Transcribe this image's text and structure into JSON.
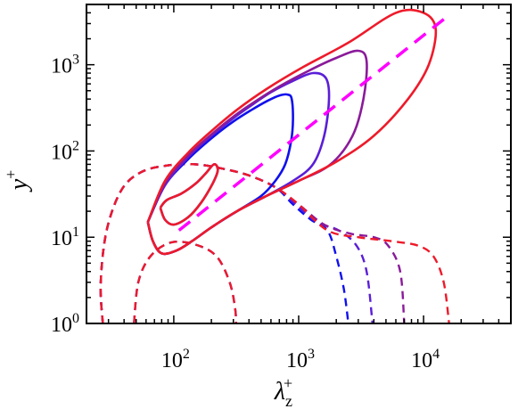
{
  "chart_data": {
    "type": "contour",
    "xlabel": "λ",
    "xlabel_sub": "z",
    "xlabel_sup": "+",
    "ylabel": "y",
    "ylabel_sup": "+",
    "x_scale": "log",
    "y_scale": "log",
    "xlim": [
      20,
      50000
    ],
    "ylim": [
      1,
      5000
    ],
    "x_ticks": [
      {
        "value": 100,
        "base": "10",
        "exp": "2"
      },
      {
        "value": 1000,
        "base": "10",
        "exp": "3"
      },
      {
        "value": 10000,
        "base": "10",
        "exp": "4"
      }
    ],
    "y_ticks": [
      {
        "value": 1,
        "base": "10",
        "exp": "0"
      },
      {
        "value": 10,
        "base": "10",
        "exp": "1"
      },
      {
        "value": 100,
        "base": "10",
        "exp": "2"
      },
      {
        "value": 1000,
        "base": "10",
        "exp": "3"
      }
    ],
    "reference_line": {
      "color": "#ff00ff",
      "style": "dashed",
      "points": [
        [
          110,
          12
        ],
        [
          15000,
          3500
        ]
      ]
    },
    "series": [
      {
        "color": "#1010ee",
        "solid_contours": [
          [
            [
              62,
              15
            ],
            [
              68,
              9
            ],
            [
              80,
              6.5
            ],
            [
              105,
              7
            ],
            [
              140,
              9
            ],
            [
              200,
              13
            ],
            [
              320,
              20
            ],
            [
              500,
              30
            ],
            [
              650,
              45
            ],
            [
              780,
              70
            ],
            [
              870,
              130
            ],
            [
              900,
              230
            ],
            [
              880,
              400
            ],
            [
              820,
              450
            ],
            [
              700,
              440
            ],
            [
              560,
              380
            ],
            [
              420,
              300
            ],
            [
              300,
              220
            ],
            [
              200,
              140
            ],
            [
              130,
              80
            ],
            [
              85,
              40
            ],
            [
              62,
              15
            ]
          ],
          [
            [
              78,
              22
            ],
            [
              85,
              16
            ],
            [
              100,
              14
            ],
            [
              130,
              17
            ],
            [
              165,
              25
            ],
            [
              205,
              42
            ],
            [
              225,
              60
            ],
            [
              210,
              70
            ],
            [
              180,
              55
            ],
            [
              150,
              42
            ],
            [
              115,
              32
            ],
            [
              88,
              27
            ],
            [
              78,
              22
            ]
          ]
        ],
        "dashed_contours": [
          [
            [
              27,
              1
            ],
            [
              26,
              3
            ],
            [
              29,
              12
            ],
            [
              38,
              35
            ],
            [
              55,
              57
            ],
            [
              90,
              68
            ],
            [
              150,
              70
            ],
            [
              250,
              62
            ],
            [
              400,
              52
            ],
            [
              650,
              38
            ],
            [
              900,
              24
            ],
            [
              1250,
              16
            ],
            [
              1700,
              12
            ],
            [
              2000,
              6
            ],
            [
              2300,
              2.5
            ],
            [
              2500,
              1
            ]
          ],
          [
            [
              48,
              1
            ],
            [
              52,
              3
            ],
            [
              65,
              6
            ],
            [
              95,
              8.7
            ],
            [
              150,
              8.2
            ],
            [
              220,
              6
            ],
            [
              280,
              3
            ],
            [
              310,
              1.5
            ],
            [
              315,
              1
            ]
          ]
        ]
      },
      {
        "color": "#5a1ed8",
        "solid_contours": [
          [
            [
              62,
              15
            ],
            [
              68,
              9
            ],
            [
              80,
              6.5
            ],
            [
              105,
              7
            ],
            [
              140,
              9
            ],
            [
              200,
              13
            ],
            [
              320,
              20
            ],
            [
              550,
              30
            ],
            [
              900,
              45
            ],
            [
              1300,
              70
            ],
            [
              1600,
              150
            ],
            [
              1750,
              400
            ],
            [
              1650,
              700
            ],
            [
              1300,
              800
            ],
            [
              900,
              650
            ],
            [
              600,
              480
            ],
            [
              420,
              340
            ],
            [
              300,
              240
            ],
            [
              200,
              150
            ],
            [
              130,
              85
            ],
            [
              85,
              40
            ],
            [
              62,
              15
            ]
          ]
        ],
        "dashed_contours": [
          [
            [
              27,
              1
            ],
            [
              26,
              3
            ],
            [
              29,
              12
            ],
            [
              38,
              35
            ],
            [
              55,
              57
            ],
            [
              90,
              68
            ],
            [
              150,
              70
            ],
            [
              250,
              62
            ],
            [
              400,
              52
            ],
            [
              650,
              38
            ],
            [
              950,
              24
            ],
            [
              1400,
              15
            ],
            [
              2100,
              12
            ],
            [
              2900,
              8
            ],
            [
              3500,
              4
            ],
            [
              3900,
              1
            ]
          ]
        ]
      },
      {
        "color": "#8a1a9a",
        "solid_contours": [
          [
            [
              62,
              15
            ],
            [
              68,
              9
            ],
            [
              80,
              6.5
            ],
            [
              105,
              7
            ],
            [
              140,
              9
            ],
            [
              200,
              13
            ],
            [
              320,
              20
            ],
            [
              550,
              30
            ],
            [
              1000,
              45
            ],
            [
              1800,
              70
            ],
            [
              2700,
              150
            ],
            [
              3300,
              400
            ],
            [
              3500,
              1100
            ],
            [
              3000,
              1450
            ],
            [
              2000,
              1200
            ],
            [
              1200,
              850
            ],
            [
              700,
              560
            ],
            [
              430,
              360
            ],
            [
              300,
              250
            ],
            [
              200,
              155
            ],
            [
              130,
              88
            ],
            [
              85,
              42
            ],
            [
              62,
              15
            ]
          ]
        ],
        "dashed_contours": [
          [
            [
              27,
              1
            ],
            [
              26,
              3
            ],
            [
              29,
              12
            ],
            [
              38,
              35
            ],
            [
              55,
              57
            ],
            [
              90,
              68
            ],
            [
              150,
              70
            ],
            [
              250,
              62
            ],
            [
              400,
              52
            ],
            [
              650,
              38
            ],
            [
              1000,
              24
            ],
            [
              1600,
              14
            ],
            [
              2600,
              11
            ],
            [
              4000,
              10
            ],
            [
              5200,
              8
            ],
            [
              6500,
              4
            ],
            [
              7000,
              1
            ]
          ]
        ]
      },
      {
        "color": "#ee1a2a",
        "solid_contours": [
          [
            [
              62,
              15
            ],
            [
              68,
              9
            ],
            [
              80,
              6.5
            ],
            [
              105,
              7
            ],
            [
              140,
              9
            ],
            [
              200,
              13
            ],
            [
              320,
              20
            ],
            [
              550,
              30
            ],
            [
              1000,
              45
            ],
            [
              2000,
              75
            ],
            [
              4000,
              150
            ],
            [
              7500,
              400
            ],
            [
              11000,
              1000
            ],
            [
              12500,
              2600
            ],
            [
              10000,
              4000
            ],
            [
              6000,
              4000
            ],
            [
              2500,
              1800
            ],
            [
              1100,
              950
            ],
            [
              550,
              520
            ],
            [
              320,
              300
            ],
            [
              200,
              170
            ],
            [
              130,
              95
            ],
            [
              85,
              45
            ],
            [
              62,
              15
            ]
          ],
          [
            [
              78,
              22
            ],
            [
              85,
              16
            ],
            [
              100,
              14
            ],
            [
              130,
              17
            ],
            [
              165,
              25
            ],
            [
              205,
              42
            ],
            [
              225,
              60
            ],
            [
              210,
              70
            ],
            [
              180,
              55
            ],
            [
              150,
              42
            ],
            [
              115,
              32
            ],
            [
              88,
              27
            ],
            [
              78,
              22
            ]
          ]
        ],
        "dashed_contours": [
          [
            [
              27,
              1
            ],
            [
              26,
              3
            ],
            [
              29,
              12
            ],
            [
              38,
              35
            ],
            [
              55,
              57
            ],
            [
              90,
              68
            ],
            [
              150,
              70
            ],
            [
              250,
              62
            ],
            [
              400,
              52
            ],
            [
              650,
              38
            ],
            [
              1000,
              24
            ],
            [
              1700,
              12
            ],
            [
              3000,
              10
            ],
            [
              5500,
              9
            ],
            [
              9000,
              8
            ],
            [
              12000,
              6
            ],
            [
              14500,
              3
            ],
            [
              16000,
              1
            ]
          ],
          [
            [
              48,
              1
            ],
            [
              52,
              3
            ],
            [
              65,
              6
            ],
            [
              95,
              8.7
            ],
            [
              150,
              8.2
            ],
            [
              220,
              6
            ],
            [
              280,
              3
            ],
            [
              310,
              1.5
            ],
            [
              315,
              1
            ]
          ]
        ]
      }
    ]
  }
}
